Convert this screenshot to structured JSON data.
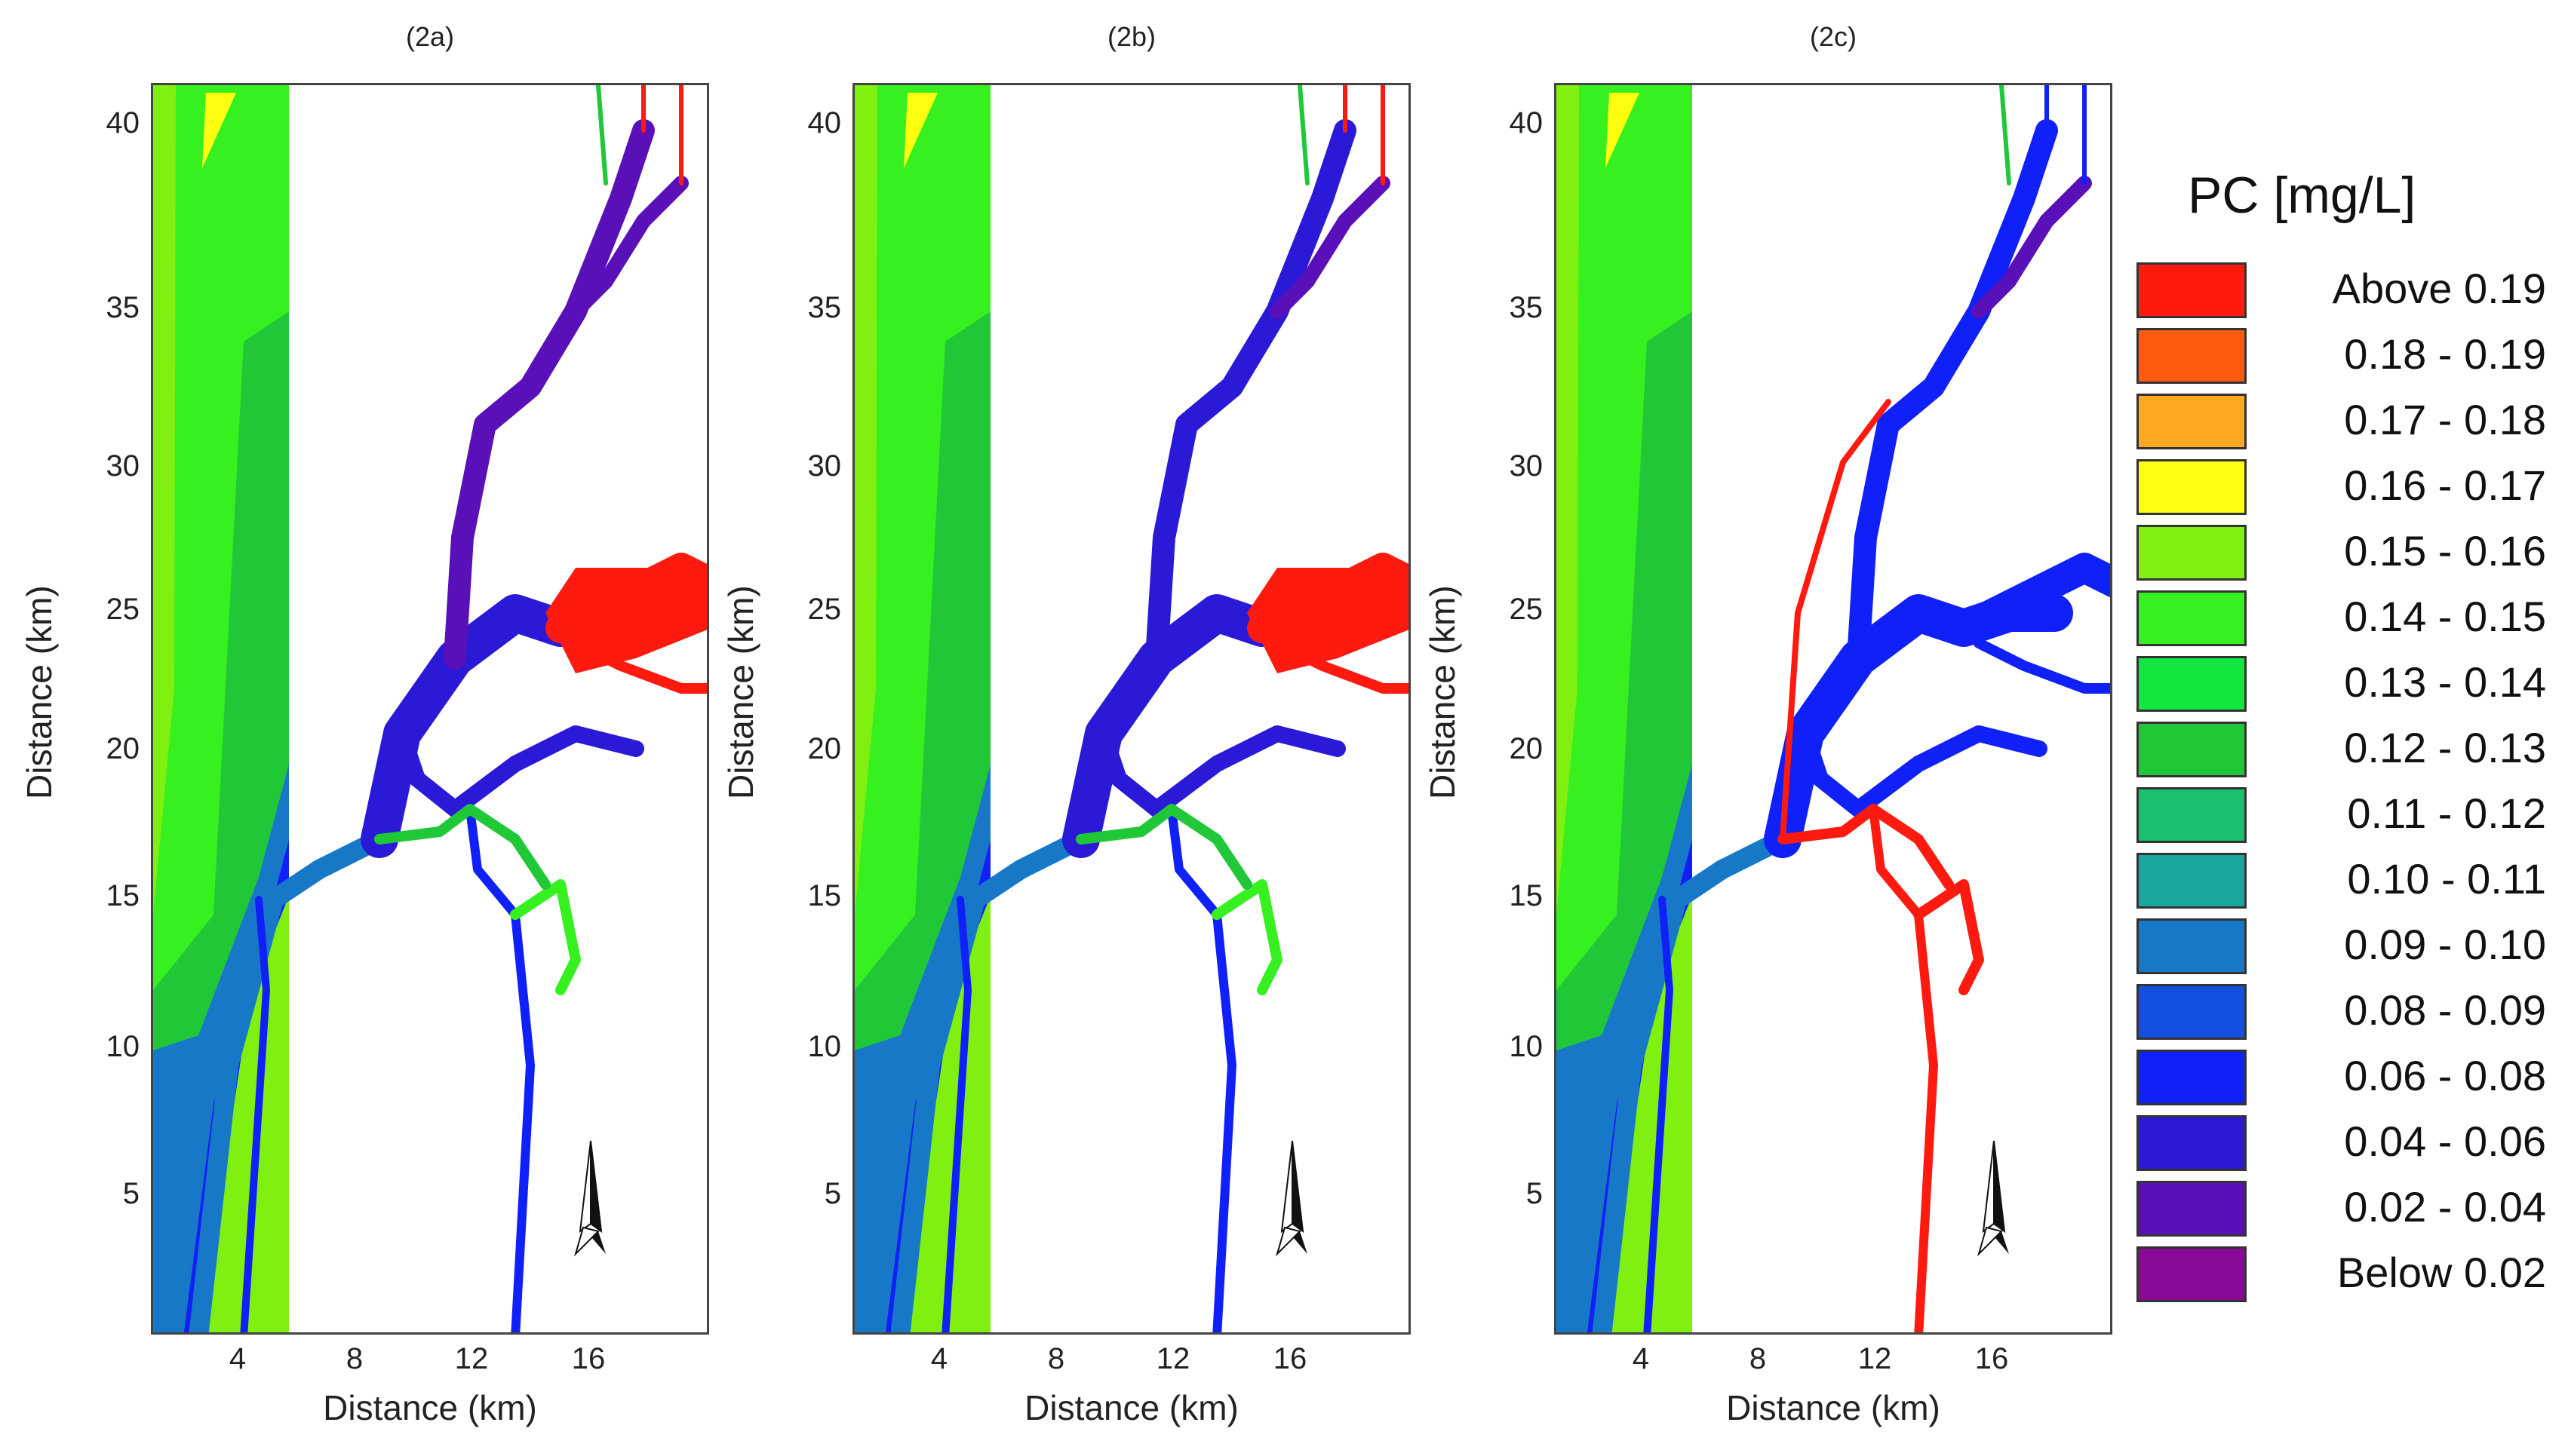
{
  "panels": [
    {
      "title": "(2a)",
      "scenario": "a"
    },
    {
      "title": "(2b)",
      "scenario": "b"
    },
    {
      "title": "(2c)",
      "scenario": "c"
    }
  ],
  "axes": {
    "xlabel": "Distance (km)",
    "ylabel": "Distance (km)",
    "xticks": [
      "4",
      "8",
      "12",
      "16"
    ],
    "yticks": [
      "40",
      "35",
      "30",
      "25",
      "20",
      "15",
      "10",
      "5"
    ]
  },
  "legend": {
    "title": "PC [mg/L]",
    "items": [
      {
        "label": "Above 0.19",
        "color": "#ff1a10"
      },
      {
        "label": "0.18 - 0.19",
        "color": "#ff5a10"
      },
      {
        "label": "0.17 - 0.18",
        "color": "#ffa820"
      },
      {
        "label": "0.16 - 0.17",
        "color": "#ffff10"
      },
      {
        "label": "0.15 - 0.16",
        "color": "#80f010"
      },
      {
        "label": "0.14 - 0.15",
        "color": "#36f020"
      },
      {
        "label": "0.13 - 0.14",
        "color": "#10e840"
      },
      {
        "label": "0.12 - 0.13",
        "color": "#20c838"
      },
      {
        "label": "0.11 - 0.12",
        "color": "#18c070"
      },
      {
        "label": "0.10 - 0.11",
        "color": "#18a8a0"
      },
      {
        "label": "0.09 - 0.10",
        "color": "#1878c8"
      },
      {
        "label": "0.08 - 0.09",
        "color": "#1450e0"
      },
      {
        "label": "0.06 - 0.08",
        "color": "#1020f8"
      },
      {
        "label": "0.04 - 0.06",
        "color": "#2a1ad8"
      },
      {
        "label": "0.02 - 0.04",
        "color": "#5a10b8"
      },
      {
        "label": "Below 0.02",
        "color": "#8a0a98"
      }
    ]
  },
  "colors": {
    "sea_far": "#80f010",
    "sea_mid": "#36f020",
    "sea_near": "#20c838",
    "shore": "#1878c8",
    "inner_shore": "#1020f8",
    "channel_deep": "#2a1ad8",
    "upper_estuary": "#5a10b8",
    "high": "#ff1a10"
  }
}
